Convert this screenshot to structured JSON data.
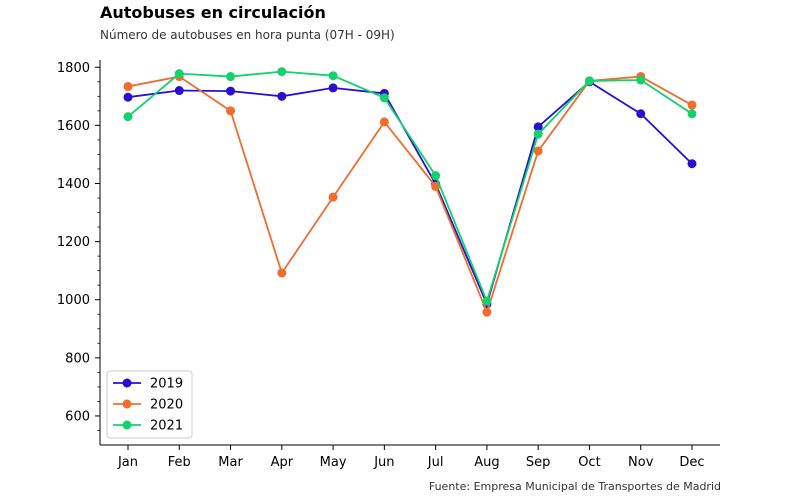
{
  "header": {
    "title": "Autobuses en circulación",
    "subtitle": "Número de autobuses en hora punta (07H - 09H)"
  },
  "footer": {
    "source": "Fuente: Empresa Municipal de Transportes de Madrid"
  },
  "chart_data": {
    "type": "line",
    "title": "Autobuses en circulación",
    "subtitle": "Número de autobuses en hora punta (07H - 09H)",
    "xlabel": "",
    "ylabel": "",
    "categories": [
      "Jan",
      "Feb",
      "Mar",
      "Apr",
      "May",
      "Jun",
      "Jul",
      "Aug",
      "Sep",
      "Oct",
      "Nov",
      "Dec"
    ],
    "ylim": [
      500,
      1825
    ],
    "yticks": [
      600,
      800,
      1000,
      1200,
      1400,
      1600,
      1800
    ],
    "grid": false,
    "legend": "bottom-left",
    "series": [
      {
        "name": "2019",
        "color": "#2b0fd1",
        "values": [
          1697,
          1720,
          1718,
          1700,
          1729,
          1710,
          1398,
          985,
          1595,
          1750,
          1640,
          1468
        ]
      },
      {
        "name": "2020",
        "color": "#f06d2d",
        "values": [
          1734,
          1768,
          1650,
          1092,
          1353,
          1612,
          1390,
          957,
          1512,
          1753,
          1768,
          1670
        ]
      },
      {
        "name": "2021",
        "color": "#12d26b",
        "values": [
          1630,
          1778,
          1768,
          1785,
          1771,
          1695,
          1427,
          995,
          1570,
          1753,
          1756,
          1640
        ]
      }
    ]
  }
}
